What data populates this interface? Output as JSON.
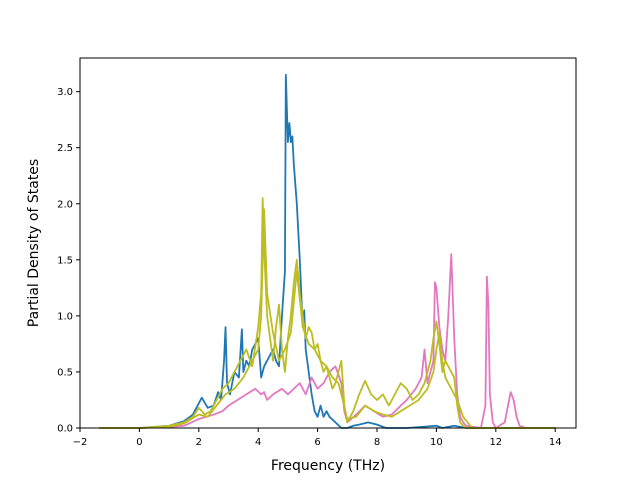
{
  "chart_data": {
    "type": "line",
    "title": "",
    "xlabel": "Frequency (THz)",
    "ylabel": "Partial Density of States",
    "xlim": [
      -2.0,
      14.7
    ],
    "ylim": [
      0.0,
      3.3
    ],
    "xticks": [
      -2,
      0,
      2,
      4,
      6,
      8,
      10,
      12,
      14
    ],
    "xtick_labels": [
      "−2",
      "0",
      "2",
      "4",
      "6",
      "8",
      "10",
      "12",
      "14"
    ],
    "yticks": [
      0.0,
      0.5,
      1.0,
      1.5,
      2.0,
      2.5,
      3.0
    ],
    "ytick_labels": [
      "0.0",
      "0.5",
      "1.0",
      "1.5",
      "2.0",
      "2.5",
      "3.0"
    ],
    "grid": false,
    "legend": "none",
    "series": [
      {
        "color": "#1f77b4",
        "x": [
          -1.35,
          0.0,
          1.0,
          1.5,
          1.8,
          2.0,
          2.1,
          2.3,
          2.5,
          2.65,
          2.75,
          2.85,
          2.9,
          2.95,
          3.05,
          3.2,
          3.35,
          3.45,
          3.5,
          3.6,
          3.7,
          3.8,
          3.9,
          4.0,
          4.1,
          4.2,
          4.3,
          4.4,
          4.5,
          4.6,
          4.7,
          4.8,
          4.9,
          4.93,
          5.0,
          5.05,
          5.1,
          5.15,
          5.2,
          5.3,
          5.4,
          5.5,
          5.55,
          5.6,
          5.7,
          5.8,
          5.9,
          6.0,
          6.1,
          6.2,
          6.3,
          6.4,
          6.6,
          6.8,
          7.0,
          7.2,
          7.4,
          7.7,
          8.0,
          8.3,
          9.0,
          10.0,
          10.2,
          10.6,
          11.0,
          12.0,
          14.0
        ],
        "y": [
          0.0,
          0.0,
          0.02,
          0.06,
          0.12,
          0.22,
          0.27,
          0.18,
          0.2,
          0.32,
          0.25,
          0.6,
          0.9,
          0.4,
          0.3,
          0.5,
          0.45,
          0.88,
          0.5,
          0.6,
          0.55,
          0.7,
          0.75,
          0.8,
          0.45,
          0.55,
          0.6,
          0.65,
          0.7,
          0.6,
          0.55,
          1.0,
          1.4,
          3.15,
          2.55,
          2.72,
          2.55,
          2.6,
          2.35,
          2.0,
          1.5,
          0.9,
          1.05,
          0.7,
          0.5,
          0.3,
          0.15,
          0.1,
          0.2,
          0.1,
          0.15,
          0.1,
          0.05,
          0.0,
          0.0,
          0.02,
          0.03,
          0.05,
          0.03,
          0.0,
          0.0,
          0.02,
          0.0,
          0.02,
          0.0,
          0.0,
          0.0
        ]
      },
      {
        "color": "#e377c2",
        "x": [
          -1.35,
          0.0,
          1.0,
          1.5,
          2.0,
          2.5,
          2.8,
          3.0,
          3.3,
          3.6,
          3.9,
          4.1,
          4.2,
          4.3,
          4.5,
          4.8,
          5.0,
          5.2,
          5.4,
          5.6,
          5.8,
          6.0,
          6.2,
          6.4,
          6.6,
          6.8,
          6.9,
          7.0,
          7.3,
          7.6,
          7.9,
          8.2,
          8.5,
          8.8,
          9.0,
          9.3,
          9.5,
          9.6,
          9.7,
          9.8,
          9.9,
          9.95,
          10.0,
          10.1,
          10.2,
          10.3,
          10.4,
          10.5,
          10.6,
          10.7,
          10.8,
          10.9,
          11.0,
          11.5,
          11.65,
          11.7,
          11.75,
          11.8,
          11.9,
          12.0,
          12.3,
          12.5,
          12.6,
          12.7,
          12.8,
          13.0,
          14.0
        ],
        "y": [
          0.0,
          0.0,
          0.01,
          0.02,
          0.08,
          0.12,
          0.15,
          0.2,
          0.25,
          0.3,
          0.35,
          0.3,
          0.32,
          0.25,
          0.3,
          0.35,
          0.3,
          0.35,
          0.4,
          0.3,
          0.45,
          0.35,
          0.4,
          0.5,
          0.55,
          0.4,
          0.15,
          0.05,
          0.12,
          0.2,
          0.15,
          0.1,
          0.12,
          0.2,
          0.25,
          0.35,
          0.45,
          0.7,
          0.4,
          0.5,
          0.6,
          1.3,
          1.25,
          0.9,
          0.7,
          0.6,
          1.0,
          1.55,
          0.8,
          0.3,
          0.1,
          0.05,
          0.02,
          0.0,
          0.2,
          1.35,
          1.1,
          0.3,
          0.05,
          0.0,
          0.05,
          0.32,
          0.25,
          0.1,
          0.02,
          0.0,
          0.0
        ]
      },
      {
        "color": "#bcbd22",
        "x": [
          -1.35,
          0.0,
          1.0,
          1.5,
          1.8,
          2.0,
          2.2,
          2.4,
          2.6,
          2.8,
          3.0,
          3.2,
          3.4,
          3.6,
          3.8,
          4.0,
          4.1,
          4.15,
          4.2,
          4.3,
          4.4,
          4.5,
          4.6,
          4.7,
          4.8,
          4.9,
          5.0,
          5.1,
          5.2,
          5.3,
          5.4,
          5.5,
          5.6,
          5.7,
          5.8,
          5.9,
          6.0,
          6.1,
          6.2,
          6.3,
          6.4,
          6.5,
          6.6,
          6.7,
          6.8,
          6.9,
          7.0,
          7.2,
          7.4,
          7.6,
          7.8,
          8.0,
          8.2,
          8.4,
          8.6,
          8.8,
          9.0,
          9.2,
          9.4,
          9.6,
          9.8,
          9.9,
          10.0,
          10.1,
          10.2,
          10.3,
          10.4,
          10.5,
          10.6,
          10.7,
          10.8,
          10.9,
          11.0,
          12.0,
          14.0
        ],
        "y": [
          0.0,
          0.0,
          0.02,
          0.05,
          0.1,
          0.18,
          0.12,
          0.15,
          0.25,
          0.35,
          0.4,
          0.5,
          0.6,
          0.7,
          0.55,
          0.9,
          1.2,
          2.05,
          1.6,
          1.0,
          0.8,
          0.6,
          0.9,
          1.1,
          0.7,
          0.5,
          0.8,
          1.0,
          1.3,
          1.5,
          1.2,
          1.0,
          0.8,
          0.9,
          0.85,
          0.7,
          0.75,
          0.6,
          0.5,
          0.55,
          0.45,
          0.35,
          0.4,
          0.5,
          0.6,
          0.2,
          0.05,
          0.15,
          0.3,
          0.42,
          0.3,
          0.25,
          0.3,
          0.2,
          0.3,
          0.4,
          0.35,
          0.25,
          0.3,
          0.4,
          0.6,
          0.8,
          0.95,
          0.75,
          0.5,
          0.6,
          0.55,
          0.5,
          0.45,
          0.2,
          0.05,
          0.02,
          0.0,
          0.0,
          0.0
        ]
      },
      {
        "color": "#bcbd22",
        "x": [
          -1.35,
          0.0,
          1.0,
          1.5,
          2.0,
          2.3,
          2.6,
          2.9,
          3.2,
          3.5,
          3.8,
          4.0,
          4.1,
          4.2,
          4.3,
          4.5,
          4.7,
          4.9,
          5.1,
          5.3,
          5.5,
          5.7,
          5.9,
          6.1,
          6.3,
          6.5,
          6.7,
          6.8,
          7.0,
          7.3,
          7.6,
          7.9,
          8.2,
          8.5,
          8.8,
          9.1,
          9.4,
          9.7,
          9.9,
          10.0,
          10.1,
          10.2,
          10.3,
          10.5,
          10.7,
          10.9,
          11.2,
          14.0
        ],
        "y": [
          0.0,
          0.0,
          0.01,
          0.04,
          0.12,
          0.1,
          0.2,
          0.3,
          0.35,
          0.45,
          0.6,
          0.7,
          1.0,
          1.95,
          1.2,
          0.85,
          0.6,
          0.7,
          0.85,
          1.4,
          0.9,
          0.75,
          0.7,
          0.6,
          0.55,
          0.45,
          0.4,
          0.3,
          0.08,
          0.1,
          0.2,
          0.15,
          0.12,
          0.1,
          0.15,
          0.2,
          0.25,
          0.35,
          0.5,
          0.7,
          0.85,
          0.6,
          0.45,
          0.35,
          0.25,
          0.1,
          0.0,
          0.0
        ]
      }
    ]
  }
}
